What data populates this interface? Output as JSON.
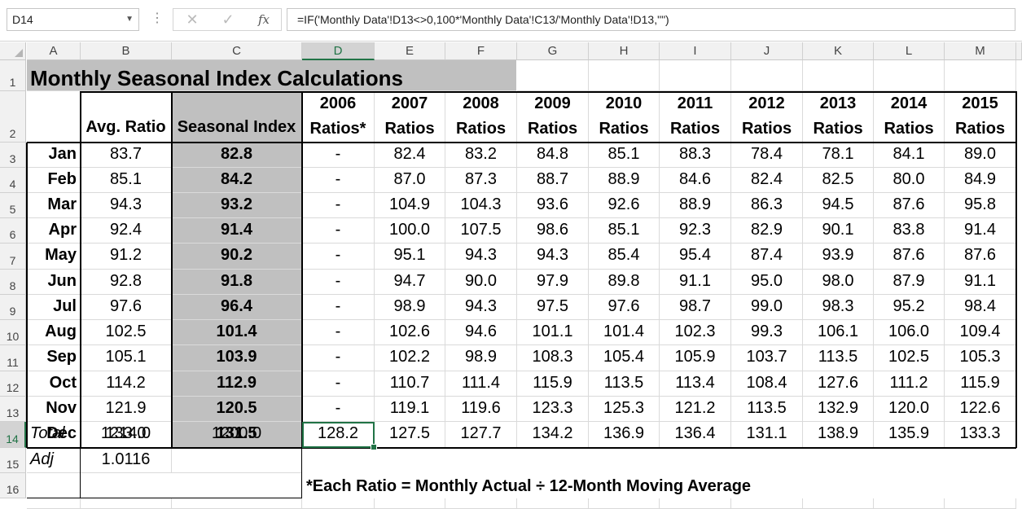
{
  "formula_bar": {
    "name_box": "D14",
    "formula": "=IF('Monthly Data'!D13<>0,100*'Monthly Data'!C13/'Monthly Data'!D13,\"\")"
  },
  "columns": [
    "A",
    "B",
    "C",
    "D",
    "E",
    "F",
    "G",
    "H",
    "I",
    "J",
    "K",
    "L",
    "M"
  ],
  "rows": [
    "1",
    "2",
    "3",
    "4",
    "5",
    "6",
    "7",
    "8",
    "9",
    "10",
    "11",
    "12",
    "13",
    "14",
    "15",
    "16"
  ],
  "title": "Monthly Seasonal Index Calculations",
  "header": {
    "avg_ratio": "Avg. Ratio",
    "seasonal_index": "Seasonal Index",
    "years": [
      "2006",
      "2007",
      "2008",
      "2009",
      "2010",
      "2011",
      "2012",
      "2013",
      "2014",
      "2015"
    ],
    "ratios_label": [
      "Ratios*",
      "Ratios",
      "Ratios",
      "Ratios",
      "Ratios",
      "Ratios",
      "Ratios",
      "Ratios",
      "Ratios",
      "Ratios"
    ]
  },
  "months": [
    {
      "m": "Jan",
      "avg": "83.7",
      "si": "82.8",
      "r": [
        "-",
        "82.4",
        "83.2",
        "84.8",
        "85.1",
        "88.3",
        "78.4",
        "78.1",
        "84.1",
        "89.0"
      ]
    },
    {
      "m": "Feb",
      "avg": "85.1",
      "si": "84.2",
      "r": [
        "-",
        "87.0",
        "87.3",
        "88.7",
        "88.9",
        "84.6",
        "82.4",
        "82.5",
        "80.0",
        "84.9"
      ]
    },
    {
      "m": "Mar",
      "avg": "94.3",
      "si": "93.2",
      "r": [
        "-",
        "104.9",
        "104.3",
        "93.6",
        "92.6",
        "88.9",
        "86.3",
        "94.5",
        "87.6",
        "95.8"
      ]
    },
    {
      "m": "Apr",
      "avg": "92.4",
      "si": "91.4",
      "r": [
        "-",
        "100.0",
        "107.5",
        "98.6",
        "85.1",
        "92.3",
        "82.9",
        "90.1",
        "83.8",
        "91.4"
      ]
    },
    {
      "m": "May",
      "avg": "91.2",
      "si": "90.2",
      "r": [
        "-",
        "95.1",
        "94.3",
        "94.3",
        "85.4",
        "95.4",
        "87.4",
        "93.9",
        "87.6",
        "87.6"
      ]
    },
    {
      "m": "Jun",
      "avg": "92.8",
      "si": "91.8",
      "r": [
        "-",
        "94.7",
        "90.0",
        "97.9",
        "89.8",
        "91.1",
        "95.0",
        "98.0",
        "87.9",
        "91.1"
      ]
    },
    {
      "m": "Jul",
      "avg": "97.6",
      "si": "96.4",
      "r": [
        "-",
        "98.9",
        "94.3",
        "97.5",
        "97.6",
        "98.7",
        "99.0",
        "98.3",
        "95.2",
        "98.4"
      ]
    },
    {
      "m": "Aug",
      "avg": "102.5",
      "si": "101.4",
      "r": [
        "-",
        "102.6",
        "94.6",
        "101.1",
        "101.4",
        "102.3",
        "99.3",
        "106.1",
        "106.0",
        "109.4"
      ]
    },
    {
      "m": "Sep",
      "avg": "105.1",
      "si": "103.9",
      "r": [
        "-",
        "102.2",
        "98.9",
        "108.3",
        "105.4",
        "105.9",
        "103.7",
        "113.5",
        "102.5",
        "105.3"
      ]
    },
    {
      "m": "Oct",
      "avg": "114.2",
      "si": "112.9",
      "r": [
        "-",
        "110.7",
        "111.4",
        "115.9",
        "113.5",
        "113.4",
        "108.4",
        "127.6",
        "111.2",
        "115.9"
      ]
    },
    {
      "m": "Nov",
      "avg": "121.9",
      "si": "120.5",
      "r": [
        "-",
        "119.1",
        "119.6",
        "123.3",
        "125.3",
        "121.2",
        "113.5",
        "132.9",
        "120.0",
        "122.6"
      ]
    },
    {
      "m": "Dec",
      "avg": "133.0",
      "si": "131.5",
      "r": [
        "128.2",
        "127.5",
        "127.7",
        "134.2",
        "136.9",
        "136.4",
        "131.1",
        "138.9",
        "135.9",
        "133.3"
      ]
    }
  ],
  "totals": {
    "label": "Total",
    "avg": "1214.0",
    "si": "1200.0"
  },
  "adj": {
    "label": "Adj",
    "avg": "1.0116"
  },
  "footnote": "*Each Ratio = Monthly Actual ÷ 12-Month Moving Average",
  "selected": {
    "column": "D",
    "row": "14"
  },
  "colors": {
    "gray_fill": "#c0c0c0",
    "selection": "#217346"
  }
}
